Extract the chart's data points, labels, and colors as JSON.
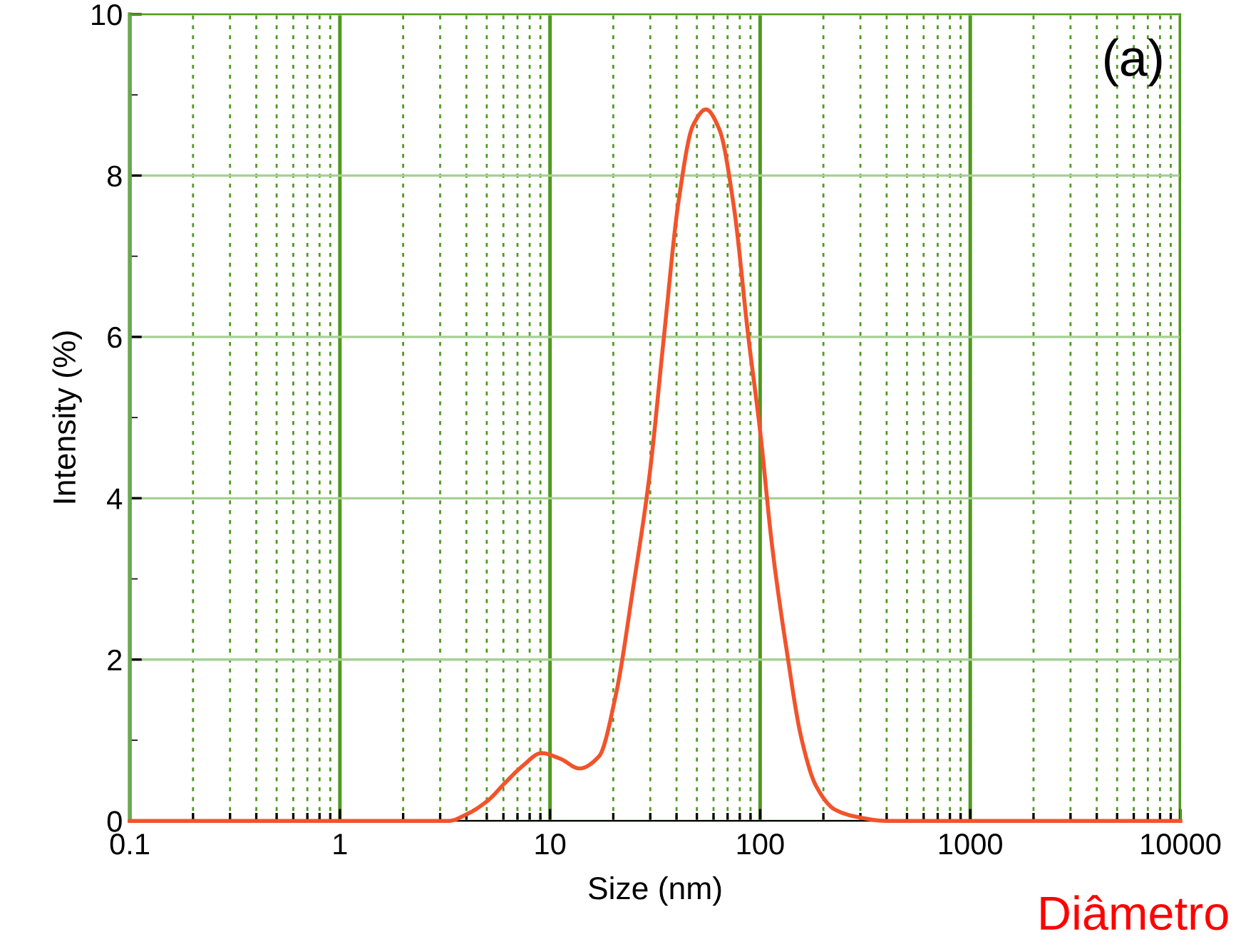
{
  "chart_data": {
    "type": "line",
    "xlabel": "Size (nm)",
    "ylabel": "Intensity (%)",
    "log": "x",
    "xlim": [
      0.1,
      10000
    ],
    "xticks": [
      0.1,
      {
        "value": 0.2,
        "label": null
      },
      {
        "value": 0.3,
        "label": null
      },
      {
        "value": 0.4,
        "label": null
      },
      {
        "value": 0.5,
        "label": null
      },
      {
        "value": 0.6,
        "label": null
      },
      {
        "value": 0.7,
        "label": null
      },
      {
        "value": 0.8,
        "label": null
      },
      {
        "value": 0.9,
        "label": null
      },
      1,
      {
        "value": 2,
        "label": null
      },
      {
        "value": 3,
        "label": null
      },
      {
        "value": 4,
        "label": null
      },
      {
        "value": 5,
        "label": null
      },
      {
        "value": 6,
        "label": null
      },
      {
        "value": 7,
        "label": null
      },
      {
        "value": 8,
        "label": null
      },
      {
        "value": 9,
        "label": null
      },
      10,
      {
        "value": 20,
        "label": null
      },
      {
        "value": 30,
        "label": null
      },
      {
        "value": 40,
        "label": null
      },
      {
        "value": 50,
        "label": null
      },
      {
        "value": 60,
        "label": null
      },
      {
        "value": 70,
        "label": null
      },
      {
        "value": 80,
        "label": null
      },
      {
        "value": 90,
        "label": null
      },
      100,
      {
        "value": 200,
        "label": null
      },
      {
        "value": 300,
        "label": null
      },
      {
        "value": 400,
        "label": null
      },
      {
        "value": 500,
        "label": null
      },
      {
        "value": 600,
        "label": null
      },
      {
        "value": 700,
        "label": null
      },
      {
        "value": 800,
        "label": null
      },
      {
        "value": 900,
        "label": null
      },
      1000,
      {
        "value": 2000,
        "label": null
      },
      {
        "value": 3000,
        "label": null
      },
      {
        "value": 4000,
        "label": null
      },
      {
        "value": 5000,
        "label": null
      },
      {
        "value": 6000,
        "label": null
      },
      {
        "value": 7000,
        "label": null
      },
      {
        "value": 8000,
        "label": null
      },
      {
        "value": 9000,
        "label": null
      },
      10000
    ],
    "ylim": [
      0,
      10
    ],
    "yticks": [
      0,
      2,
      4,
      6,
      8,
      10
    ],
    "grid": true,
    "marker": "none",
    "line_style": "solid",
    "series": [
      {
        "color": "#f2532b",
        "x": [
          0.1,
          1,
          3.3,
          4.0,
          5.1,
          6.1,
          7.4,
          9.1,
          11.2,
          13.8,
          17.1,
          20.6,
          24.8,
          29.8,
          34.9,
          40.9,
          47.9,
          55.2,
          64.0,
          74.9,
          87.7,
          100,
          114,
          134,
          157,
          184,
          227,
          288,
          400,
          1000,
          10000
        ],
        "values": [
          0,
          0,
          0,
          0.08,
          0.26,
          0.47,
          0.68,
          0.84,
          0.77,
          0.65,
          0.8,
          1.57,
          2.87,
          4.3,
          6.02,
          7.68,
          8.62,
          8.82,
          8.57,
          7.62,
          6.02,
          4.83,
          3.41,
          2.1,
          1.03,
          0.44,
          0.14,
          0.05,
          0,
          0,
          0
        ]
      }
    ],
    "annotations": [
      "(a)",
      "Diâmetro"
    ]
  }
}
